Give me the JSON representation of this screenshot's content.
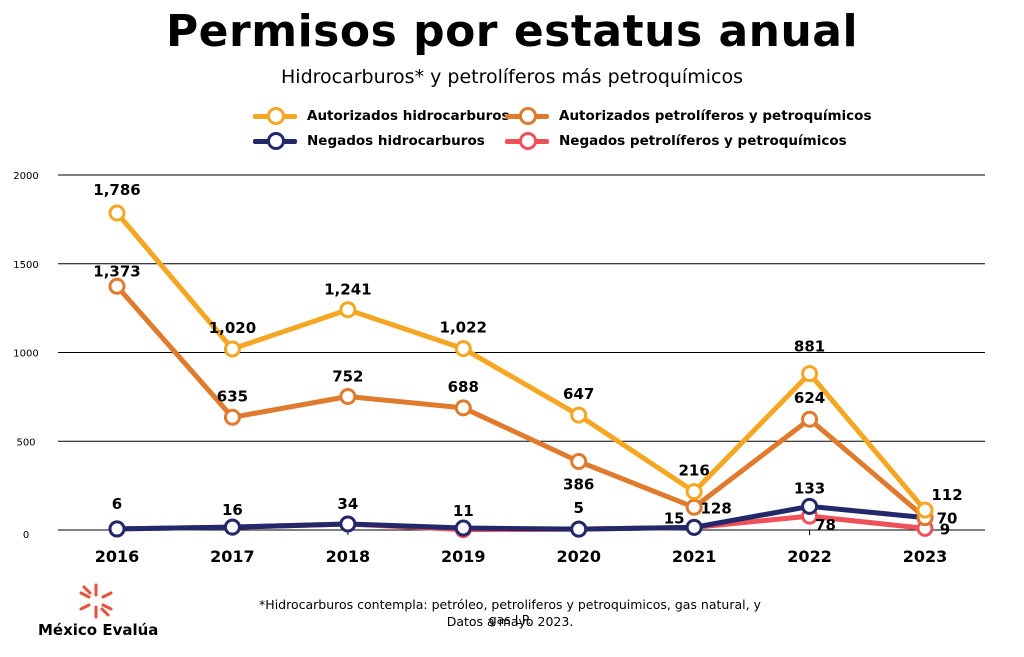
{
  "title": "Permisos por estatus anual",
  "subtitle": "Hidrocarburos* y petrolíferos más petroquímicos",
  "footnote_line1": "*Hidrocarburos contempla: petróleo, petroliferos y petroquimicos, gas natural, y gas LP.",
  "footnote_line2": "Datos a mayo 2023.",
  "logo_text": "México Evalúa",
  "colors": {
    "autorizados_hidrocarburos": "#F5A623",
    "autorizados_petroliferos": "#E07B2E",
    "negados_hidrocarburos": "#23286B",
    "negados_petroliferos": "#F0505A"
  },
  "chart_data": {
    "type": "line",
    "title": "Permisos por estatus anual",
    "subtitle": "Hidrocarburos* y petrolíferos más petroquímicos",
    "categories": [
      "2016",
      "2017",
      "2018",
      "2019",
      "2020",
      "2021",
      "2022",
      "2023"
    ],
    "ylim": [
      0,
      2000
    ],
    "yticks": [
      "0",
      "500",
      "1000",
      "1500",
      "2000"
    ],
    "grid": true,
    "legend_position": "top",
    "series": [
      {
        "name": "Autorizados hidrocarburos",
        "color": "#F5A623",
        "values": [
          1786,
          1020,
          1241,
          1022,
          647,
          216,
          881,
          112
        ],
        "labels": [
          "1,786",
          "1,020",
          "1,241",
          "1,022",
          "647",
          "216",
          "881",
          "112"
        ]
      },
      {
        "name": "Autorizados petrolíferos y petroquímicos",
        "color": "#E07B2E",
        "values": [
          1373,
          635,
          752,
          688,
          386,
          128,
          624,
          70
        ],
        "labels": [
          "1,373",
          "635",
          "752",
          "688",
          "386",
          "128",
          "624",
          "70"
        ]
      },
      {
        "name": "Negados hidrocarburos",
        "color": "#23286B",
        "values": [
          6,
          16,
          34,
          11,
          5,
          15,
          133,
          70
        ],
        "labels": [
          "6",
          "16",
          "34",
          "11",
          "5",
          "15",
          "133",
          ""
        ]
      },
      {
        "name": "Negados petrolíferos y petroquímicos",
        "color": "#F0505A",
        "values": [
          6,
          16,
          34,
          2,
          5,
          15,
          78,
          9
        ],
        "labels": [
          "",
          "",
          "",
          "",
          "",
          "",
          "78",
          "9"
        ]
      }
    ]
  }
}
